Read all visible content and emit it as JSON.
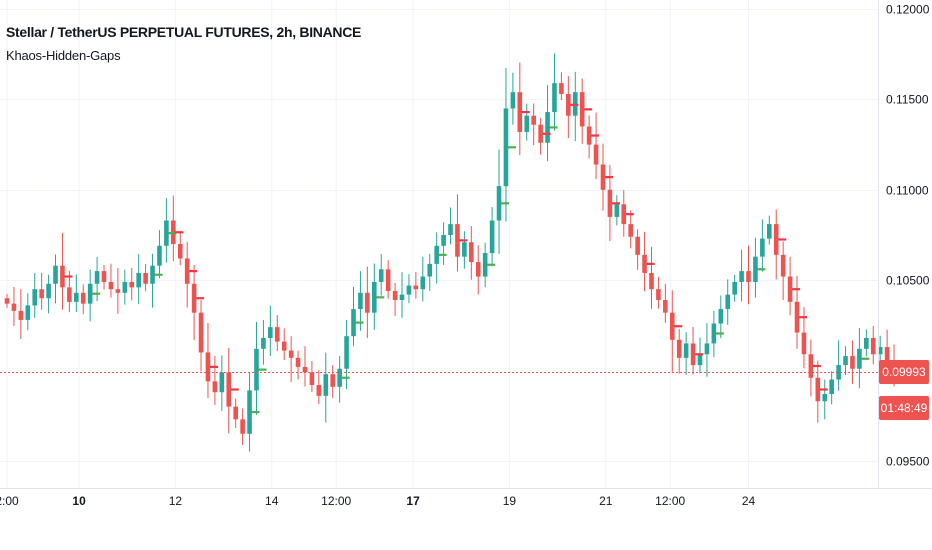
{
  "header": {
    "symbol_title": "Stellar / TetherUS PERPETUAL FUTURES, 2h, BINANCE",
    "indicator": "Khaos-Hidden-Gaps"
  },
  "last_price_label": "0.09993",
  "countdown_label": "01:48:49",
  "colors": {
    "up": "#26a69a",
    "down": "#ef5350",
    "gap_up": "#4caf50",
    "gap_down": "#f23645",
    "grid": "#f0f3fa",
    "text": "#131722"
  },
  "chart_data": {
    "type": "candlestick",
    "ylim": [
      0.0935,
      0.1205
    ],
    "yticks": [
      "0.12000",
      "0.11500",
      "0.11000",
      "0.10500",
      "0.09500"
    ],
    "xticks": [
      {
        "label": "2:00",
        "bold": false,
        "pos": 0.0
      },
      {
        "label": "10",
        "bold": true,
        "pos": 10.4
      },
      {
        "label": "12",
        "bold": false,
        "pos": 24.3
      },
      {
        "label": "14",
        "bold": false,
        "pos": 38.2
      },
      {
        "label": "12:00",
        "bold": false,
        "pos": 47.5
      },
      {
        "label": "17",
        "bold": true,
        "pos": 58.6
      },
      {
        "label": "19",
        "bold": false,
        "pos": 72.5
      },
      {
        "label": "21",
        "bold": false,
        "pos": 86.4
      },
      {
        "label": "12:00",
        "bold": false,
        "pos": 95.7
      },
      {
        "label": "24",
        "bold": false,
        "pos": 107.0
      }
    ],
    "last_price": 0.09993,
    "closes": [
      0.1037,
      0.1033,
      0.1028,
      0.1036,
      0.1045,
      0.104,
      0.1048,
      0.1058,
      0.1046,
      0.1038,
      0.1043,
      0.1037,
      0.1048,
      0.1055,
      0.1049,
      0.1045,
      0.1043,
      0.1049,
      0.1046,
      0.1054,
      0.1048,
      0.1058,
      0.1069,
      0.1083,
      0.107,
      0.1062,
      0.1048,
      0.1032,
      0.101,
      0.0994,
      0.0988,
      0.0999,
      0.098,
      0.0973,
      0.0965,
      0.0989,
      0.1012,
      0.1018,
      0.1024,
      0.1016,
      0.1011,
      0.1007,
      0.1002,
      0.0999,
      0.0992,
      0.0986,
      0.0998,
      0.0991,
      0.1001,
      0.1019,
      0.1034,
      0.1043,
      0.1032,
      0.1049,
      0.1056,
      0.1044,
      0.1039,
      0.1042,
      0.1047,
      0.1045,
      0.1052,
      0.1059,
      0.1069,
      0.1075,
      0.1081,
      0.1063,
      0.1071,
      0.106,
      0.1052,
      0.1065,
      0.1083,
      0.1102,
      0.1145,
      0.1154,
      0.1132,
      0.1141,
      0.1136,
      0.1126,
      0.1143,
      0.1159,
      0.1153,
      0.1141,
      0.1154,
      0.1135,
      0.1125,
      0.1114,
      0.11,
      0.1085,
      0.1092,
      0.1081,
      0.1074,
      0.1064,
      0.1054,
      0.1045,
      0.1039,
      0.1032,
      0.1017,
      0.1007,
      0.1015,
      0.1003,
      0.1009,
      0.1015,
      0.1026,
      0.1034,
      0.1042,
      0.1049,
      0.1055,
      0.1049,
      0.1063,
      0.1073,
      0.1081,
      0.1064,
      0.1052,
      0.1038,
      0.1021,
      0.1009,
      0.0996,
      0.0983,
      0.0987,
      0.0995,
      0.1003,
      0.1008,
      0.1001,
      0.1012,
      0.1018,
      0.1009,
      0.1013,
      0.1004,
      0.0999
    ]
  }
}
